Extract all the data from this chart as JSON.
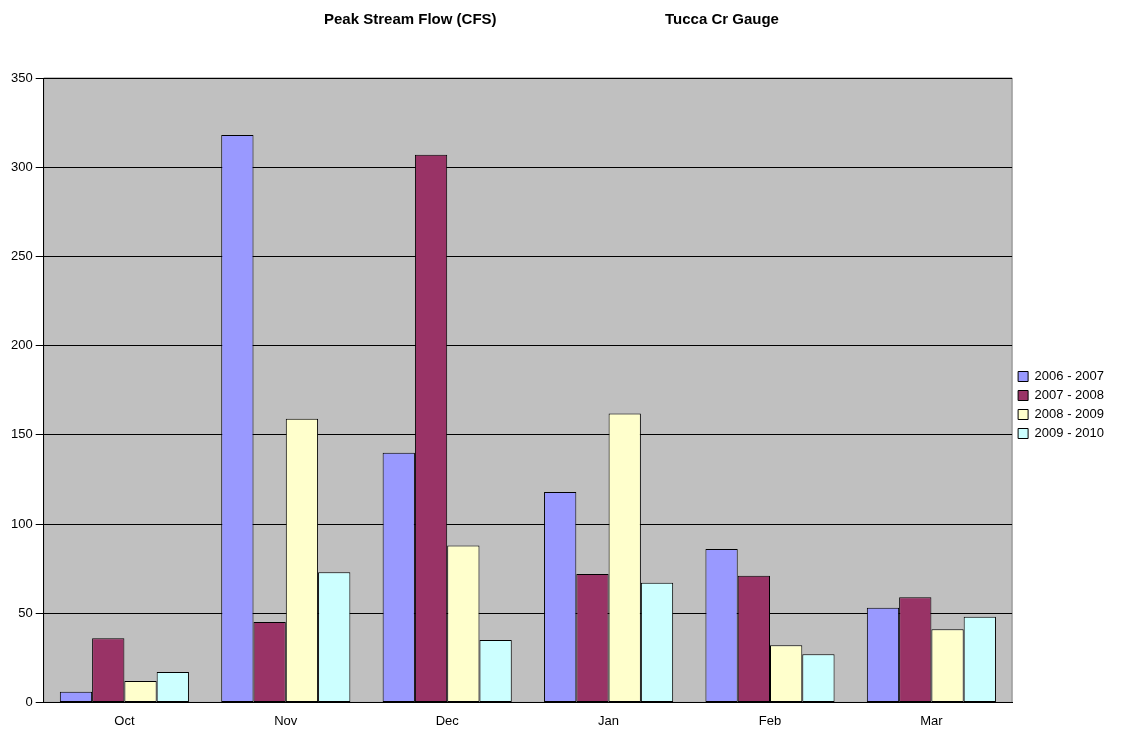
{
  "chart_data": {
    "type": "bar",
    "title": "Peak Stream Flow (CFS)",
    "subtitle": "Tucca Cr Gauge",
    "categories": [
      "Oct",
      "Nov",
      "Dec",
      "Jan",
      "Feb",
      "Mar"
    ],
    "series": [
      {
        "name": "2006 - 2007",
        "color": "#9999ff",
        "values": [
          6,
          318,
          140,
          118,
          86,
          53
        ]
      },
      {
        "name": "2007 - 2008",
        "color": "#993366",
        "values": [
          36,
          45,
          307,
          72,
          71,
          59
        ]
      },
      {
        "name": "2008 - 2009",
        "color": "#ffffcc",
        "values": [
          12,
          159,
          88,
          162,
          32,
          41
        ]
      },
      {
        "name": "2009 - 2010",
        "color": "#ccffff",
        "values": [
          17,
          73,
          35,
          67,
          27,
          48
        ]
      }
    ],
    "ylim": [
      0,
      350
    ],
    "yticks": [
      0,
      50,
      100,
      150,
      200,
      250,
      300,
      350
    ],
    "grid": "y",
    "legend": "right"
  }
}
